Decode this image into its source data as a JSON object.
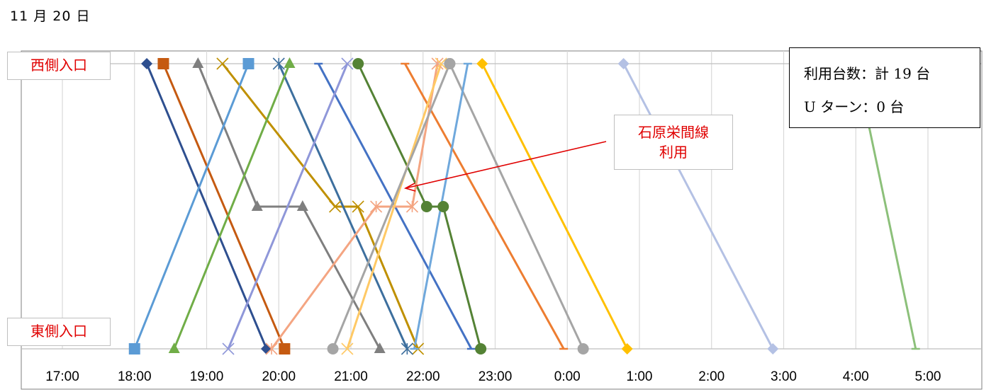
{
  "title": "11 月 20 日",
  "labels": {
    "west": "西側入口",
    "east": "東側入口"
  },
  "stats": {
    "line1": "利用台数：計 19 台",
    "line2": "U ターン：0 台"
  },
  "callout": {
    "line1": "石原栄間線",
    "line2": "利用"
  },
  "chart_data": {
    "type": "line",
    "x_unit": "hours after 17:00",
    "x_ticks": [
      "17:00",
      "18:00",
      "19:00",
      "20:00",
      "21:00",
      "22:00",
      "23:00",
      "0:00",
      "1:00",
      "2:00",
      "3:00",
      "4:00",
      "5:00"
    ],
    "y_categories": [
      "東側入口",
      "石原栄間線",
      "西側入口"
    ],
    "series": [
      {
        "color": "#2e4f8f",
        "marker": "diamond",
        "points": [
          [
            1.17,
            2
          ],
          [
            2.83,
            0
          ]
        ]
      },
      {
        "color": "#c55a11",
        "marker": "square",
        "points": [
          [
            1.4,
            2
          ],
          [
            3.08,
            0
          ]
        ]
      },
      {
        "color": "#7f7f7f",
        "marker": "triangle",
        "points": [
          [
            1.88,
            2
          ],
          [
            2.7,
            1
          ],
          [
            3.33,
            1
          ],
          [
            4.4,
            0
          ]
        ]
      },
      {
        "color": "#bf9000",
        "marker": "x",
        "points": [
          [
            2.22,
            2
          ],
          [
            3.78,
            1
          ],
          [
            4.1,
            1
          ],
          [
            4.93,
            0
          ]
        ]
      },
      {
        "color": "#5b9bd5",
        "marker": "square",
        "points": [
          [
            1,
            0
          ],
          [
            2.58,
            2
          ]
        ]
      },
      {
        "color": "#3d6f9e",
        "marker": "star",
        "points": [
          [
            3.0,
            2
          ],
          [
            4.78,
            0
          ]
        ]
      },
      {
        "color": "#70ad47",
        "marker": "triangle",
        "points": [
          [
            1.55,
            0
          ],
          [
            3.15,
            2
          ]
        ]
      },
      {
        "color": "#4472c4",
        "marker": "dash",
        "points": [
          [
            3.55,
            2
          ],
          [
            5.67,
            0
          ]
        ]
      },
      {
        "color": "#8f97d9",
        "marker": "x",
        "points": [
          [
            2.3,
            0
          ],
          [
            3.95,
            2
          ]
        ]
      },
      {
        "color": "#548235",
        "marker": "circle",
        "points": [
          [
            4.1,
            2
          ],
          [
            5.05,
            1
          ],
          [
            5.28,
            1
          ],
          [
            5.8,
            0
          ]
        ]
      },
      {
        "color": "#ed7d31",
        "marker": "dash",
        "points": [
          [
            4.75,
            2
          ],
          [
            6.95,
            0
          ]
        ]
      },
      {
        "color": "#f4a582",
        "marker": "star",
        "points": [
          [
            2.9,
            0
          ],
          [
            4.35,
            1
          ],
          [
            4.85,
            1
          ],
          [
            5.2,
            2
          ]
        ]
      },
      {
        "color": "#ffc965",
        "marker": "x",
        "points": [
          [
            3.95,
            0
          ],
          [
            5.25,
            2
          ]
        ]
      },
      {
        "color": "#a5a5a5",
        "marker": "circle",
        "points": [
          [
            3.75,
            0
          ],
          [
            5.37,
            2
          ]
        ]
      },
      {
        "color": "#a5a5a5",
        "marker": "circle",
        "points": [
          [
            5.37,
            2
          ],
          [
            7.22,
            0
          ]
        ]
      },
      {
        "color": "#6fa8dc",
        "marker": "dash",
        "points": [
          [
            4.88,
            0
          ],
          [
            5.62,
            2
          ]
        ]
      },
      {
        "color": "#ffc000",
        "marker": "diamond",
        "points": [
          [
            5.82,
            2
          ],
          [
            7.83,
            0
          ]
        ]
      },
      {
        "color": "#b4c1e4",
        "marker": "diamond",
        "points": [
          [
            7.78,
            2
          ],
          [
            9.85,
            0
          ]
        ]
      },
      {
        "color": "#8cc07a",
        "marker": "dash",
        "points": [
          [
            11.0,
            2
          ],
          [
            11.83,
            0
          ]
        ]
      }
    ]
  }
}
